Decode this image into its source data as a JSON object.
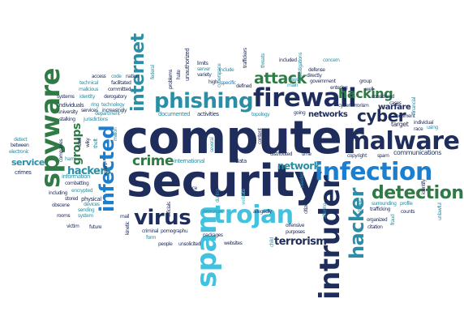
{
  "colors": {
    "navy": "#1f2d5c",
    "teal": "#2a8fa6",
    "blue": "#1c7ecf",
    "cyan": "#41c3e0",
    "green": "#2f7a45",
    "gray": "#707070",
    "black": "#111111"
  },
  "words": [
    {
      "id": "computer",
      "text": "computer",
      "color": "navy"
    },
    {
      "id": "security",
      "text": "security",
      "color": "navy"
    },
    {
      "id": "firewall",
      "text": "firewall",
      "color": "navy"
    },
    {
      "id": "malware",
      "text": "malware",
      "color": "navy"
    },
    {
      "id": "infection",
      "text": "infection",
      "color": "blue"
    },
    {
      "id": "phishing",
      "text": "phishing",
      "color": "teal"
    },
    {
      "id": "spyware",
      "text": "spyware",
      "color": "green"
    },
    {
      "id": "intruder",
      "text": "intruder",
      "color": "navy"
    },
    {
      "id": "spam",
      "text": "spam",
      "color": "cyan"
    },
    {
      "id": "trojan",
      "text": "trojan",
      "color": "cyan"
    },
    {
      "id": "virus",
      "text": "virus",
      "color": "navy"
    },
    {
      "id": "detection",
      "text": "detection",
      "color": "green"
    },
    {
      "id": "hacker",
      "text": "hacker",
      "color": "teal"
    },
    {
      "id": "infected",
      "text": "infected",
      "color": "blue"
    },
    {
      "id": "internet",
      "text": "internet",
      "color": "teal"
    },
    {
      "id": "attack",
      "text": "attack",
      "color": "green"
    },
    {
      "id": "cyber",
      "text": "cyber",
      "color": "navy"
    },
    {
      "id": "hacking",
      "text": "hacking",
      "color": "green"
    },
    {
      "id": "crime",
      "text": "crime",
      "color": "green"
    },
    {
      "id": "hackers",
      "text": "hackers",
      "color": "teal"
    },
    {
      "id": "groups",
      "text": "groups",
      "color": "green"
    },
    {
      "id": "network",
      "text": "network",
      "color": "teal"
    },
    {
      "id": "terrorism",
      "text": "terrorism",
      "color": "navy"
    },
    {
      "id": "service",
      "text": "service",
      "color": "teal"
    },
    {
      "id": "warfare",
      "text": "warfare",
      "color": "navy"
    },
    {
      "id": "networks",
      "text": "networks",
      "color": "navy"
    },
    {
      "id": "communications",
      "text": "communications",
      "color": "navy"
    },
    {
      "id": "access",
      "text": "access",
      "color": "navy"
    },
    {
      "id": "code",
      "text": "code",
      "color": "teal"
    },
    {
      "id": "nation",
      "text": "nation",
      "color": "navy"
    },
    {
      "id": "technical",
      "text": "technical",
      "color": "teal"
    },
    {
      "id": "facilitated",
      "text": "facilitated",
      "color": "navy"
    },
    {
      "id": "malicious",
      "text": "malicious",
      "color": "teal"
    },
    {
      "id": "committed",
      "text": "committed",
      "color": "navy"
    },
    {
      "id": "systems",
      "text": "systems",
      "color": "navy"
    },
    {
      "id": "identity",
      "text": "identity",
      "color": "teal"
    },
    {
      "id": "derogatory",
      "text": "derogatory",
      "color": "navy"
    },
    {
      "id": "individuals",
      "text": "individuals",
      "color": "navy"
    },
    {
      "id": "ring",
      "text": "ring",
      "color": "teal"
    },
    {
      "id": "technology",
      "text": "technology",
      "color": "teal"
    },
    {
      "id": "university",
      "text": "university",
      "color": "navy"
    },
    {
      "id": "department",
      "text": "department",
      "color": "teal"
    },
    {
      "id": "stalking",
      "text": "stalking",
      "color": "navy"
    },
    {
      "id": "jurisdictions",
      "text": "jurisdictions",
      "color": "teal"
    },
    {
      "id": "services",
      "text": "services",
      "color": "navy"
    },
    {
      "id": "increasingly",
      "text": "increasingly",
      "color": "navy"
    },
    {
      "id": "documented",
      "text": "documented",
      "color": "teal"
    },
    {
      "id": "activities",
      "text": "activities",
      "color": "navy"
    },
    {
      "id": "unauthorized",
      "text": "unauthorized",
      "color": "navy"
    },
    {
      "id": "limits",
      "text": "limits",
      "color": "navy"
    },
    {
      "id": "server",
      "text": "server",
      "color": "teal"
    },
    {
      "id": "variety",
      "text": "variety",
      "color": "navy"
    },
    {
      "id": "include",
      "text": "include",
      "color": "teal"
    },
    {
      "id": "specific",
      "text": "specific",
      "color": "blue"
    },
    {
      "id": "defined",
      "text": "defined",
      "color": "navy"
    },
    {
      "id": "traffickers",
      "text": "traffickers",
      "color": "navy"
    },
    {
      "id": "included",
      "text": "included",
      "color": "navy"
    },
    {
      "id": "defense",
      "text": "defense",
      "color": "navy"
    },
    {
      "id": "directly",
      "text": "directly",
      "color": "navy"
    },
    {
      "id": "concern",
      "text": "concern",
      "color": "teal"
    },
    {
      "id": "government",
      "text": "government",
      "color": "navy"
    },
    {
      "id": "uses",
      "text": "uses",
      "color": "teal"
    },
    {
      "id": "main",
      "text": "main",
      "color": "teal"
    },
    {
      "id": "entering",
      "text": "entering",
      "color": "navy"
    },
    {
      "id": "group",
      "text": "group",
      "color": "navy"
    },
    {
      "id": "well",
      "text": "well",
      "color": "navy"
    },
    {
      "id": "considered",
      "text": "considered",
      "color": "navy"
    },
    {
      "id": "cases",
      "text": "cases",
      "color": "navy"
    },
    {
      "id": "cyberterrorism",
      "text": "cyberterrorism",
      "color": "navy"
    },
    {
      "id": "financial",
      "text": "financial",
      "color": "teal"
    },
    {
      "id": "going",
      "text": "going",
      "color": "navy"
    },
    {
      "id": "document",
      "text": "document",
      "color": "navy"
    },
    {
      "id": "individual",
      "text": "individual",
      "color": "navy"
    },
    {
      "id": "target",
      "text": "target",
      "color": "navy"
    },
    {
      "id": "race",
      "text": "race",
      "color": "navy"
    },
    {
      "id": "using",
      "text": "using",
      "color": "teal"
    },
    {
      "id": "detect",
      "text": "detect",
      "color": "teal"
    },
    {
      "id": "between",
      "text": "between",
      "color": "navy"
    },
    {
      "id": "electronic",
      "text": "electronic",
      "color": "teal"
    },
    {
      "id": "crimes",
      "text": "crimes",
      "color": "navy"
    },
    {
      "id": "information",
      "text": "information",
      "color": "teal"
    },
    {
      "id": "combatting",
      "text": "combatting",
      "color": "navy"
    },
    {
      "id": "including",
      "text": "including",
      "color": "navy"
    },
    {
      "id": "physical",
      "text": "physical",
      "color": "navy"
    },
    {
      "id": "obscene",
      "text": "obscene",
      "color": "navy"
    },
    {
      "id": "rooms",
      "text": "rooms",
      "color": "navy"
    },
    {
      "id": "system",
      "text": "system",
      "color": "teal"
    },
    {
      "id": "victim",
      "text": "victim",
      "color": "navy"
    },
    {
      "id": "future",
      "text": "future",
      "color": "navy"
    },
    {
      "id": "encrypted",
      "text": "encrypted",
      "color": "teal"
    },
    {
      "id": "stored",
      "text": "stored",
      "color": "navy"
    },
    {
      "id": "devices",
      "text": "devices",
      "color": "teal"
    },
    {
      "id": "harm",
      "text": "harm",
      "color": "teal"
    },
    {
      "id": "sending",
      "text": "sending",
      "color": "teal"
    },
    {
      "id": "mail",
      "text": "mail",
      "color": "navy"
    },
    {
      "id": "international",
      "text": "international",
      "color": "teal"
    },
    {
      "id": "data",
      "text": "data",
      "color": "navy"
    },
    {
      "id": "face",
      "text": "face",
      "color": "navy"
    },
    {
      "id": "officials",
      "text": "officials",
      "color": "navy"
    },
    {
      "id": "criminal",
      "text": "criminal",
      "color": "navy"
    },
    {
      "id": "pornographu",
      "text": "pornographu",
      "color": "navy"
    },
    {
      "id": "form",
      "text": "form",
      "color": "teal"
    },
    {
      "id": "people",
      "text": "people",
      "color": "navy"
    },
    {
      "id": "unsolicited",
      "text": "unsolicited",
      "color": "navy"
    },
    {
      "id": "resources",
      "text": "resources",
      "color": "teal"
    },
    {
      "id": "packages",
      "text": "packages",
      "color": "navy"
    },
    {
      "id": "websites",
      "text": "websites",
      "color": "navy"
    },
    {
      "id": "website",
      "text": "website",
      "color": "cyan"
    },
    {
      "id": "allegedly",
      "text": "allegedly",
      "color": "navy"
    },
    {
      "id": "distributed",
      "text": "distributed",
      "color": "navy"
    },
    {
      "id": "time",
      "text": "time",
      "color": "navy"
    },
    {
      "id": "copyright",
      "text": "copyright",
      "color": "navy"
    },
    {
      "id": "offensive",
      "text": "offensive",
      "color": "navy"
    },
    {
      "id": "purposes",
      "text": "purposes",
      "color": "navy"
    },
    {
      "id": "citizens",
      "text": "citizens",
      "color": "navy"
    },
    {
      "id": "organized",
      "text": "organized",
      "color": "navy"
    },
    {
      "id": "trafficking",
      "text": "trafficking",
      "color": "navy"
    },
    {
      "id": "counts",
      "text": "counts",
      "color": "navy"
    },
    {
      "id": "illegal",
      "text": "illegal",
      "color": "teal"
    },
    {
      "id": "fraud",
      "text": "fraud",
      "color": "teal"
    },
    {
      "id": "profile",
      "text": "profile",
      "color": "teal"
    },
    {
      "id": "surrounding",
      "text": "surrounding",
      "color": "teal"
    },
    {
      "id": "citation",
      "text": "citation",
      "color": "navy"
    },
    {
      "id": "topology",
      "text": "topology",
      "color": "teal"
    },
    {
      "id": "million",
      "text": "million",
      "color": "teal"
    },
    {
      "id": "problems",
      "text": "problems",
      "color": "navy"
    },
    {
      "id": "hate",
      "text": "hate",
      "color": "navy"
    },
    {
      "id": "high",
      "text": "high",
      "color": "navy"
    },
    {
      "id": "cyberspace",
      "text": "cyberspace",
      "color": "teal"
    },
    {
      "id": "content",
      "text": "content",
      "color": "navy"
    },
    {
      "id": "investigations",
      "text": "investigations",
      "color": "teal"
    },
    {
      "id": "spam2",
      "text": "spam",
      "color": "navy"
    },
    {
      "id": "altering",
      "text": "altering",
      "color": "teal"
    },
    {
      "id": "kinetic",
      "text": "kinetic",
      "color": "navy"
    },
    {
      "id": "during",
      "text": "during",
      "color": "teal"
    },
    {
      "id": "needed",
      "text": "needed",
      "color": "teal"
    },
    {
      "id": "child",
      "text": "child",
      "color": "teal"
    },
    {
      "id": "federal",
      "text": "federal",
      "color": "teal"
    },
    {
      "id": "threats",
      "text": "threats",
      "color": "teal"
    },
    {
      "id": "refers",
      "text": "refers",
      "color": "navy"
    },
    {
      "id": "companies",
      "text": "companies",
      "color": "navy"
    },
    {
      "id": "lead",
      "text": "lead",
      "color": "navy"
    },
    {
      "id": "wiky",
      "text": "wiky",
      "color": "navy"
    },
    {
      "id": "theft",
      "text": "theft",
      "color": "teal"
    },
    {
      "id": "unlawful",
      "text": "unlawful",
      "color": "teal"
    },
    {
      "id": "several",
      "text": "several",
      "color": "teal"
    },
    {
      "id": "identify",
      "text": "identify",
      "color": "navy"
    }
  ]
}
